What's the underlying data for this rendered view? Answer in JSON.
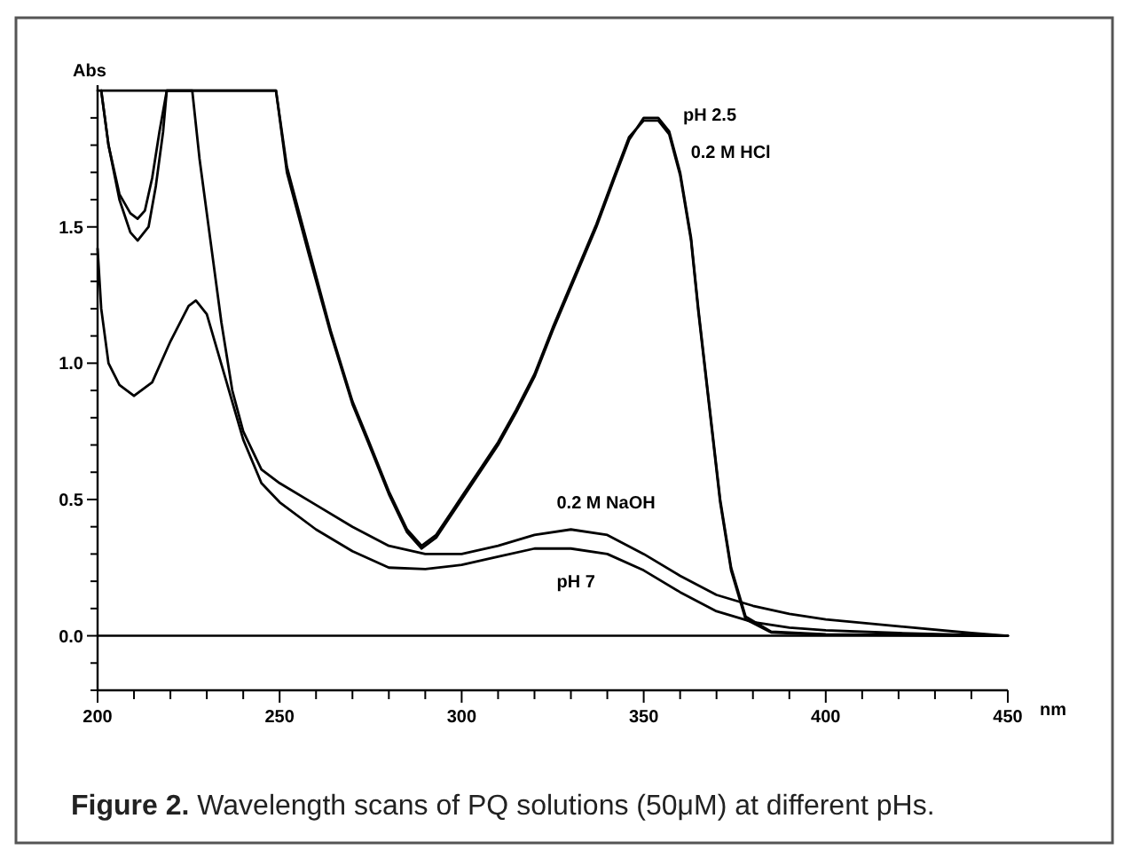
{
  "chart_data": {
    "type": "line",
    "xlabel": "nm",
    "ylabel": "Abs",
    "xlim": [
      200,
      450
    ],
    "ylim": [
      -0.2,
      2.02
    ],
    "xticks": [
      200,
      {
        "value": 210,
        "label": null
      },
      {
        "value": 220,
        "label": null
      },
      {
        "value": 230,
        "label": null
      },
      {
        "value": 240,
        "label": null
      },
      250,
      {
        "value": 260,
        "label": null
      },
      {
        "value": 270,
        "label": null
      },
      {
        "value": 280,
        "label": null
      },
      {
        "value": 290,
        "label": null
      },
      300,
      {
        "value": 310,
        "label": null
      },
      {
        "value": 320,
        "label": null
      },
      {
        "value": 330,
        "label": null
      },
      {
        "value": 340,
        "label": null
      },
      350,
      {
        "value": 360,
        "label": null
      },
      {
        "value": 370,
        "label": null
      },
      {
        "value": 380,
        "label": null
      },
      {
        "value": 390,
        "label": null
      },
      400,
      {
        "value": 410,
        "label": null
      },
      {
        "value": 420,
        "label": null
      },
      {
        "value": 430,
        "label": null
      },
      {
        "value": 440,
        "label": null
      },
      450
    ],
    "yticks": [
      {
        "value": -0.2,
        "label": null
      },
      {
        "value": -0.1,
        "label": null
      },
      {
        "value": 0,
        "label": "0.0"
      },
      {
        "value": 0.1,
        "label": null
      },
      {
        "value": 0.2,
        "label": null
      },
      {
        "value": 0.3,
        "label": null
      },
      {
        "value": 0.4,
        "label": null
      },
      {
        "value": 0.5,
        "label": "0.5"
      },
      {
        "value": 0.6,
        "label": null
      },
      {
        "value": 0.7,
        "label": null
      },
      {
        "value": 0.8,
        "label": null
      },
      {
        "value": 0.9,
        "label": null
      },
      {
        "value": 1.0,
        "label": "1.0"
      },
      {
        "value": 1.1,
        "label": null
      },
      {
        "value": 1.2,
        "label": null
      },
      {
        "value": 1.3,
        "label": null
      },
      {
        "value": 1.4,
        "label": null
      },
      {
        "value": 1.5,
        "label": "1.5"
      },
      {
        "value": 1.6,
        "label": null
      },
      {
        "value": 1.7,
        "label": null
      },
      {
        "value": 1.8,
        "label": null
      },
      {
        "value": 1.9,
        "label": null
      }
    ],
    "grid": false,
    "line_style": "solid",
    "ref_lines": [
      {
        "axis": "y",
        "value": 0,
        "color": "#000000"
      }
    ],
    "series": [
      {
        "color": "#000000",
        "x": [
          200,
          249,
          252,
          258,
          264,
          270,
          274,
          280,
          285,
          289,
          293,
          300,
          305,
          310,
          315,
          320,
          325,
          331,
          337,
          342,
          346,
          350,
          354,
          357,
          360,
          363,
          365,
          368,
          371,
          374,
          378,
          385,
          400,
          450
        ],
        "values": [
          2.0,
          2.0,
          1.7,
          1.4,
          1.11,
          0.85,
          0.72,
          0.52,
          0.38,
          0.32,
          0.36,
          0.5,
          0.6,
          0.7,
          0.82,
          0.95,
          1.12,
          1.31,
          1.5,
          1.68,
          1.82,
          1.9,
          1.9,
          1.85,
          1.7,
          1.46,
          1.2,
          0.85,
          0.5,
          0.25,
          0.07,
          0.015,
          0.005,
          0
        ]
      },
      {
        "color": "#000000",
        "x": [
          201,
          203,
          206,
          209,
          211,
          214,
          216,
          218,
          219,
          249,
          252,
          258,
          264,
          270,
          274,
          280,
          285,
          289,
          293,
          300,
          305,
          310,
          315,
          320,
          325,
          331,
          337,
          342,
          346,
          350,
          354,
          357,
          360,
          363,
          365,
          368,
          371,
          374,
          378,
          385,
          400,
          450
        ],
        "values": [
          2.0,
          1.8,
          1.6,
          1.48,
          1.45,
          1.5,
          1.65,
          1.85,
          2.0,
          2.0,
          1.72,
          1.42,
          1.12,
          0.86,
          0.73,
          0.53,
          0.39,
          0.33,
          0.37,
          0.51,
          0.61,
          0.71,
          0.83,
          0.96,
          1.13,
          1.32,
          1.51,
          1.69,
          1.83,
          1.89,
          1.89,
          1.84,
          1.69,
          1.45,
          1.19,
          0.84,
          0.49,
          0.24,
          0.06,
          0.012,
          0.004,
          0
        ]
      },
      {
        "color": "#000000",
        "x": [
          201,
          203,
          206,
          209,
          211,
          213,
          215,
          217,
          219,
          226,
          228,
          231,
          234,
          237,
          240,
          245,
          250,
          260,
          270,
          280,
          290,
          300,
          310,
          320,
          330,
          340,
          350,
          360,
          370,
          380,
          390,
          400,
          420,
          440,
          450
        ],
        "values": [
          2.0,
          1.8,
          1.62,
          1.55,
          1.53,
          1.56,
          1.68,
          1.85,
          2.0,
          2.0,
          1.75,
          1.45,
          1.15,
          0.9,
          0.75,
          0.61,
          0.56,
          0.48,
          0.4,
          0.33,
          0.3,
          0.3,
          0.33,
          0.37,
          0.39,
          0.37,
          0.3,
          0.22,
          0.15,
          0.11,
          0.08,
          0.06,
          0.035,
          0.01,
          0
        ]
      },
      {
        "color": "#000000",
        "x": [
          200,
          201,
          203,
          206,
          210,
          215,
          220,
          225,
          227,
          230,
          235,
          240,
          245,
          250,
          260,
          270,
          280,
          290,
          300,
          310,
          320,
          330,
          340,
          350,
          360,
          370,
          380,
          390,
          400,
          420,
          450
        ],
        "values": [
          1.42,
          1.2,
          1.0,
          0.92,
          0.88,
          0.93,
          1.08,
          1.21,
          1.23,
          1.18,
          0.95,
          0.72,
          0.56,
          0.49,
          0.39,
          0.31,
          0.25,
          0.245,
          0.26,
          0.29,
          0.32,
          0.32,
          0.3,
          0.24,
          0.16,
          0.09,
          0.05,
          0.03,
          0.02,
          0.01,
          0
        ]
      }
    ],
    "annotations": [
      {
        "text": "pH 2.5",
        "x": 354,
        "y": 1.89
      },
      {
        "text": "0.2 M HCl",
        "x": 360,
        "y": 1.7
      },
      {
        "text": "0.2 M NaOH",
        "x": 330,
        "y": 0.39
      },
      {
        "text": "pH 7",
        "x": 330,
        "y": 0.32
      },
      "Figure 2.",
      "Wavelength scans of PQ solutions (50μM) at different pHs."
    ]
  }
}
